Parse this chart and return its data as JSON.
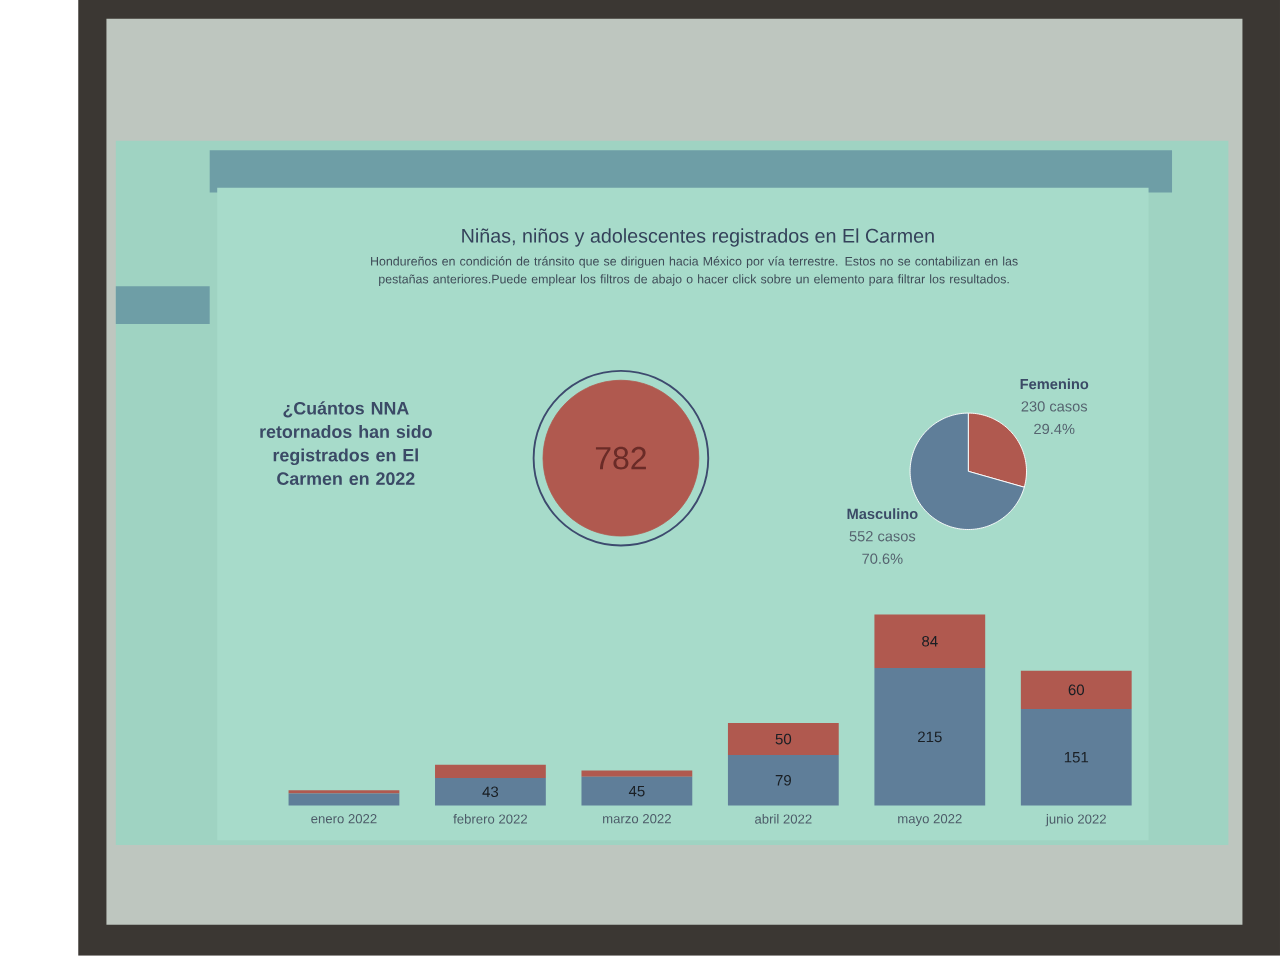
{
  "chart_data": [
    {
      "type": "other",
      "title": "Niñas, niños y adolescentes registrados en El Carmen",
      "subtitle": "Hondureños en condición de tránsito que se diriguen hacia México por vía terrestre. Estos no se contabilizan en las pestañas anteriores.Puede emplear los filtros de abajo o hacer click sobre un elemento para filtrar los resultados.",
      "annotations": [
        "¿Cuántos NNA retornados han sido registrados en El Carmen en 2022"
      ],
      "values": [
        782
      ],
      "color": "#b0594f",
      "data_labels": true
    },
    {
      "type": "pie",
      "categories": [
        "Femenino",
        "Masculino"
      ],
      "values": [
        230,
        552
      ],
      "colors": [
        "#b0594f",
        "#5f7e99"
      ],
      "value_labels": [
        "230 casos",
        "552 casos"
      ],
      "annotations": [
        "29.4%",
        "70.6%"
      ]
    },
    {
      "type": "bar",
      "stacked": true,
      "categories": [
        "enero 2022",
        "febrero 2022",
        "marzo 2022",
        "abril 2022",
        "mayo 2022",
        "junio 2022"
      ],
      "series": [
        {
          "color": "#5f7e99",
          "values": [
            19,
            43,
            45,
            79,
            215,
            151
          ],
          "value_labels": [
            null,
            "43",
            "45",
            "79",
            "215",
            "151"
          ]
        },
        {
          "color": "#b0594f",
          "values": [
            5,
            21,
            10,
            50,
            84,
            60
          ],
          "value_labels": [
            null,
            null,
            null,
            "50",
            "84",
            "60"
          ]
        }
      ]
    }
  ]
}
